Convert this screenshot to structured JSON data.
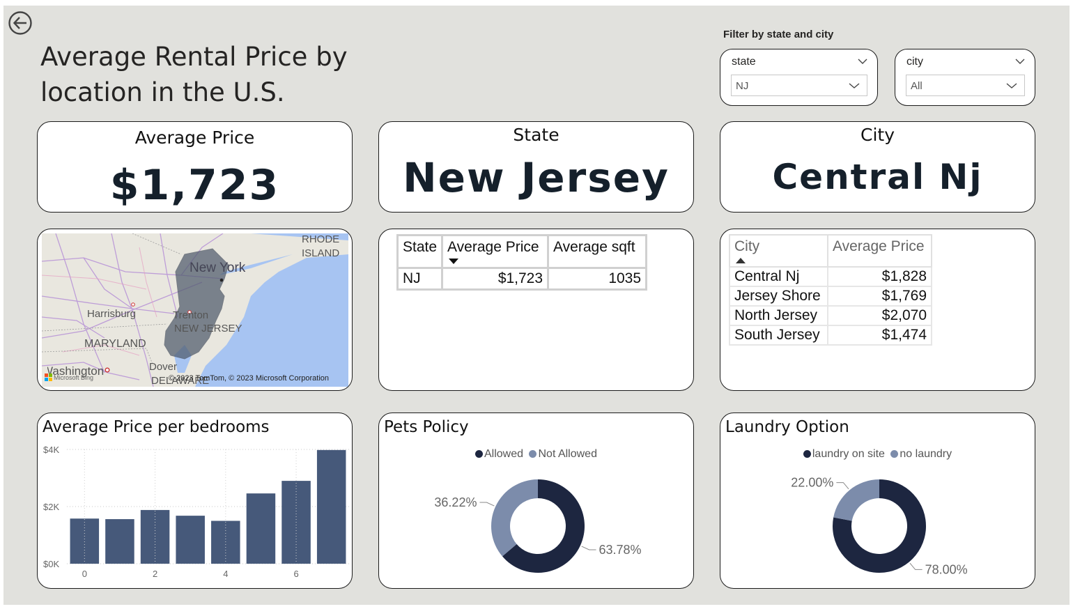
{
  "page": {
    "title": "Average Rental Price by location in the U.S.",
    "back_icon": "back-arrow-icon"
  },
  "filters": {
    "title": "Filter by state and city",
    "state": {
      "label": "state",
      "value": "NJ"
    },
    "city": {
      "label": "city",
      "value": "All"
    }
  },
  "kpis": {
    "average_price": {
      "label": "Average Price",
      "value": "$1,723"
    },
    "state": {
      "label": "State",
      "value": "New Jersey"
    },
    "city": {
      "label": "City",
      "value": "Central Nj"
    }
  },
  "map": {
    "labels": {
      "rhode": "RHODE",
      "island": "ISLAND",
      "new_york": "New York",
      "harrisburg": "Harrisburg",
      "trenton": "Trenton",
      "new_jersey": "NEW JERSEY",
      "maryland": "MARYLAND",
      "washington": "Washington",
      "dover": "Dover",
      "delaware": "DELAWARE"
    },
    "bing_logo": "Microsoft Bing",
    "attribution": "© 2023 TomTom, © 2023 Microsoft Corporation"
  },
  "state_table": {
    "columns": [
      "State",
      "Average Price",
      "Average sqft"
    ],
    "rows": [
      {
        "state": "NJ",
        "avg_price": "$1,723",
        "avg_sqft": "1035"
      }
    ]
  },
  "city_table": {
    "columns": [
      "City",
      "Average Price"
    ],
    "rows": [
      {
        "city": "Central Nj",
        "avg_price": "$1,828"
      },
      {
        "city": "Jersey Shore",
        "avg_price": "$1,769"
      },
      {
        "city": "North Jersey",
        "avg_price": "$2,070"
      },
      {
        "city": "South Jersey",
        "avg_price": "$1,474"
      }
    ]
  },
  "chart_data": [
    {
      "type": "bar",
      "title": "Average Price per bedrooms",
      "categories": [
        0,
        1,
        2,
        3,
        4,
        5,
        6,
        7
      ],
      "x_tick_labels": [
        "0",
        "2",
        "4",
        "6"
      ],
      "values": [
        1580,
        1560,
        1880,
        1680,
        1500,
        2460,
        2900,
        3980
      ],
      "y_ticks": [
        "$0K",
        "$2K",
        "$4K"
      ],
      "ylim": [
        0,
        4000
      ],
      "color": "#46597a",
      "grid": true
    },
    {
      "type": "pie",
      "title": "Pets Policy",
      "labels": [
        "Allowed",
        "Not Allowed"
      ],
      "values": [
        63.78,
        36.22
      ],
      "value_labels": [
        "63.78%",
        "36.22%"
      ],
      "colors": [
        "#1d2640",
        "#7c8cab"
      ],
      "legend": "top"
    },
    {
      "type": "pie",
      "title": "Laundry Option",
      "labels": [
        "laundry on site",
        "no laundry"
      ],
      "values": [
        78.0,
        22.0
      ],
      "value_labels": [
        "78.00%",
        "22.00%"
      ],
      "colors": [
        "#1d2640",
        "#7c8cab"
      ],
      "legend": "top"
    }
  ]
}
